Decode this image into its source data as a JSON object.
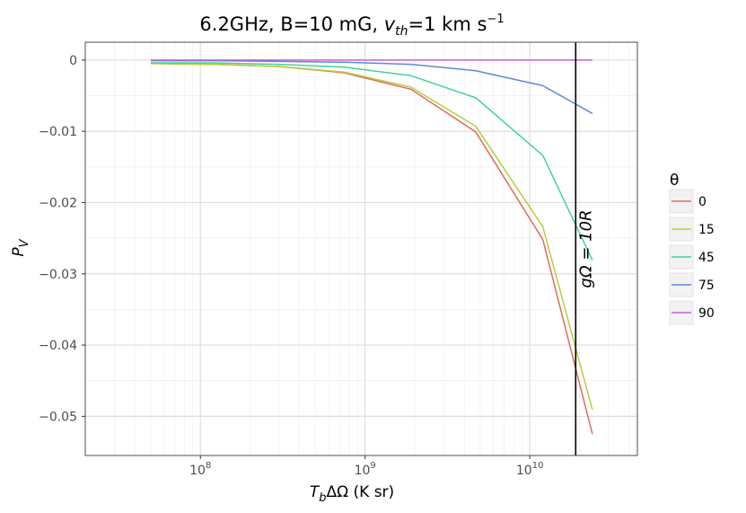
{
  "chart_data": {
    "type": "line",
    "title": {
      "prefix": "6.2GHz, B=10 mG, ",
      "var_main": "v",
      "var_sub": "th",
      "suffix": "=1 km s",
      "suffix_sup": "−1"
    },
    "xlabel": {
      "var_main": "T",
      "var_sub": "b",
      "rest": "ΔΩ (K sr)"
    },
    "ylabel": {
      "var_main": "P",
      "var_sub": "V"
    },
    "x_scale": "log",
    "xlim": [
      20000000,
      45000000000
    ],
    "ylim": [
      -0.0555,
      0.0025
    ],
    "x_ticks": [
      {
        "value": 100000000,
        "base": "10",
        "exp": "8"
      },
      {
        "value": 1000000000,
        "base": "10",
        "exp": "9"
      },
      {
        "value": 10000000000,
        "base": "10",
        "exp": "10"
      }
    ],
    "y_ticks": [
      {
        "value": 0,
        "label": "0"
      },
      {
        "value": -0.01,
        "label": "−0.01"
      },
      {
        "value": -0.02,
        "label": "−0.02"
      },
      {
        "value": -0.03,
        "label": "−0.03"
      },
      {
        "value": -0.04,
        "label": "−0.04"
      },
      {
        "value": -0.05,
        "label": "−0.05"
      }
    ],
    "grid": true,
    "legend": {
      "title": "θ",
      "position": "right"
    },
    "x": [
      50000000,
      120000000,
      300000000,
      750000000,
      1900000000,
      4700000000,
      12000000000,
      24000000000
    ],
    "series": [
      {
        "name": "0",
        "color": "#e06c5f",
        "values": [
          -0.0005,
          -0.0006,
          -0.0009,
          -0.0018,
          -0.0041,
          -0.0101,
          -0.0252,
          -0.0525
        ]
      },
      {
        "name": "15",
        "color": "#b5cf3e",
        "values": [
          -0.0005,
          -0.0006,
          -0.0009,
          -0.0017,
          -0.0038,
          -0.0093,
          -0.0234,
          -0.0491
        ]
      },
      {
        "name": "45",
        "color": "#41d496",
        "values": [
          -0.0004,
          -0.0004,
          -0.0006,
          -0.001,
          -0.0022,
          -0.0053,
          -0.0134,
          -0.0281
        ]
      },
      {
        "name": "75",
        "color": "#5c8ad8",
        "values": [
          -0.0001,
          -0.0001,
          -0.0002,
          -0.0003,
          -0.0006,
          -0.0015,
          -0.0036,
          -0.0075
        ]
      },
      {
        "name": "90",
        "color": "#c65fd8",
        "values": [
          0,
          0,
          0,
          0,
          0,
          0,
          0,
          0
        ]
      }
    ],
    "vline": {
      "x": 19000000000,
      "color": "#000000"
    },
    "annotation": {
      "text": "gΩ = 10R"
    }
  }
}
